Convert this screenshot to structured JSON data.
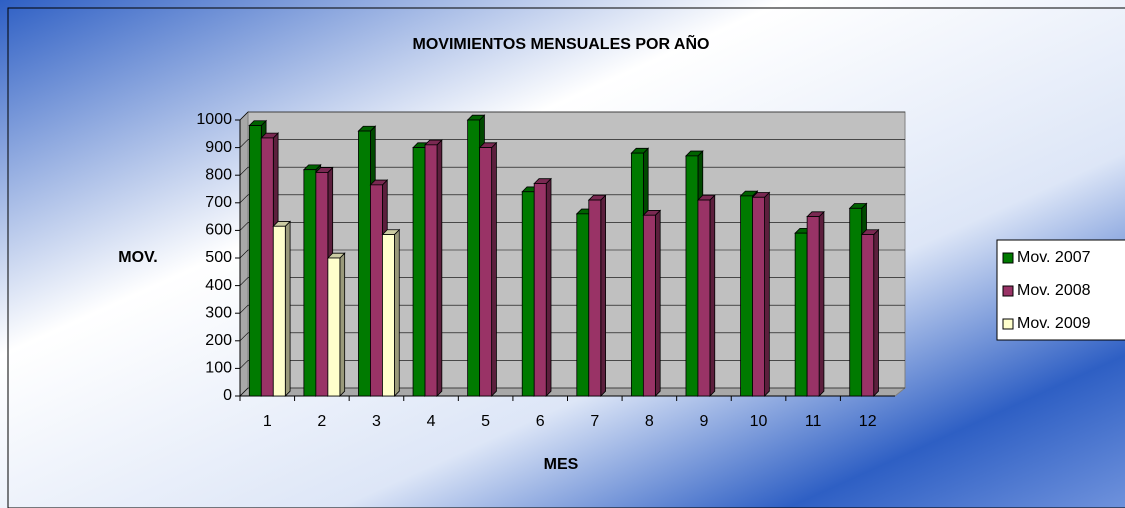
{
  "chart_data": {
    "type": "bar",
    "title": "MOVIMIENTOS MENSUALES POR AÑO",
    "y_label": "MOV.",
    "x_label": "MES",
    "categories": [
      1,
      2,
      3,
      4,
      5,
      6,
      7,
      8,
      9,
      10,
      11,
      12
    ],
    "series": [
      {
        "name": "Mov. 2007",
        "color": "#007a00",
        "values": [
          980,
          820,
          960,
          900,
          1000,
          740,
          660,
          880,
          870,
          725,
          590,
          680
        ]
      },
      {
        "name": "Mov. 2008",
        "color": "#993366",
        "values": [
          935,
          810,
          765,
          910,
          900,
          770,
          710,
          655,
          710,
          720,
          650,
          585
        ]
      },
      {
        "name": "Mov. 2009",
        "color": "#ffffcc",
        "values": [
          615,
          500,
          585,
          null,
          null,
          null,
          null,
          null,
          null,
          null,
          null,
          null
        ]
      }
    ],
    "ylim": [
      0,
      1000
    ],
    "yticks": [
      0,
      100,
      200,
      300,
      400,
      500,
      600,
      700,
      800,
      900,
      1000
    ],
    "grid": true,
    "legend": "right"
  }
}
